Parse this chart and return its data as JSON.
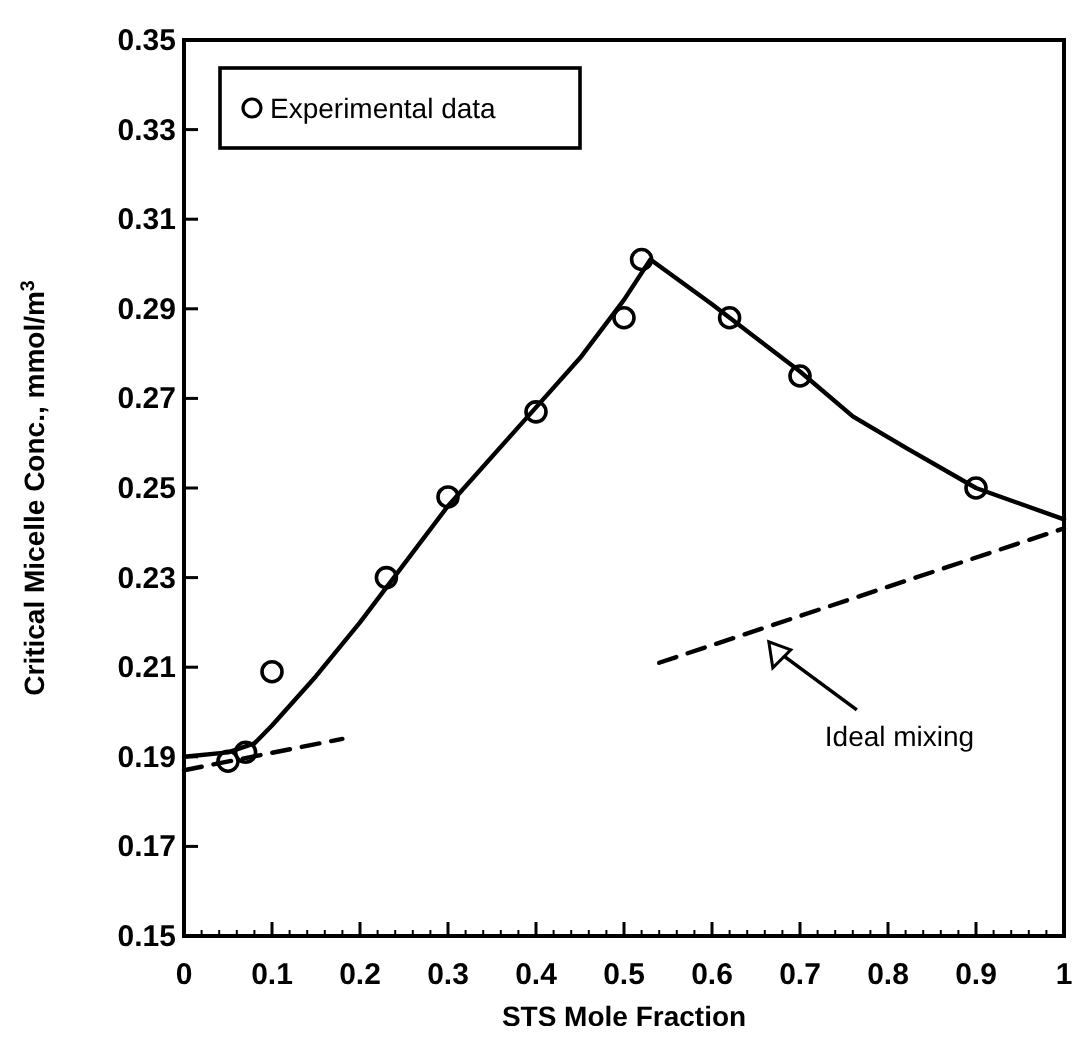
{
  "chart_data": {
    "type": "scatter",
    "xlabel": "STS Mole Fraction",
    "ylabel": "Critical Micelle Conc., mmol/m$^{3}$",
    "xlim": [
      0,
      1
    ],
    "xticks": [
      0,
      0.1,
      0.2,
      0.3,
      0.4,
      0.5,
      0.6,
      0.7,
      0.8,
      0.9,
      1
    ],
    "ylim": [
      0.15,
      0.35
    ],
    "yticks": [
      0.15,
      0.17,
      0.19,
      0.21,
      0.23,
      0.25,
      0.27,
      0.29,
      0.31,
      0.33,
      0.35
    ],
    "legend": "top left",
    "grid": false,
    "series": [
      {
        "name": "Experimental data",
        "marker": "circle",
        "color": "#000000",
        "x": [
          0.05,
          0.07,
          0.1,
          0.23,
          0.3,
          0.4,
          0.5,
          0.52,
          0.62,
          0.7,
          0.9
        ],
        "values": [
          0.189,
          0.191,
          0.209,
          0.23,
          0.248,
          0.267,
          0.288,
          0.301,
          0.288,
          0.275,
          0.25
        ]
      },
      {
        "type": "line",
        "line_style": "solid",
        "color": "#000000",
        "x": [
          0,
          0.05,
          0.08,
          0.1,
          0.15,
          0.2,
          0.3,
          0.4,
          0.45,
          0.5,
          0.53,
          0.6,
          0.7,
          0.76,
          0.82,
          0.9,
          1
        ],
        "values": [
          0.19,
          0.191,
          0.193,
          0.197,
          0.208,
          0.22,
          0.246,
          0.268,
          0.279,
          0.292,
          0.301,
          0.291,
          0.276,
          0.266,
          0.259,
          0.25,
          0.243
        ]
      },
      {
        "type": "line",
        "line_style": "dashed",
        "color": "#000000",
        "x": [
          0,
          0.18
        ],
        "values": [
          0.187,
          0.194
        ]
      },
      {
        "type": "line",
        "line_style": "dashed",
        "color": "#000000",
        "x": [
          0.54,
          1
        ],
        "values": [
          0.211,
          0.241
        ]
      }
    ],
    "annotations": [
      {
        "text": "Ideal mixing",
        "x": 0.66,
        "y": 0.217
      }
    ]
  }
}
